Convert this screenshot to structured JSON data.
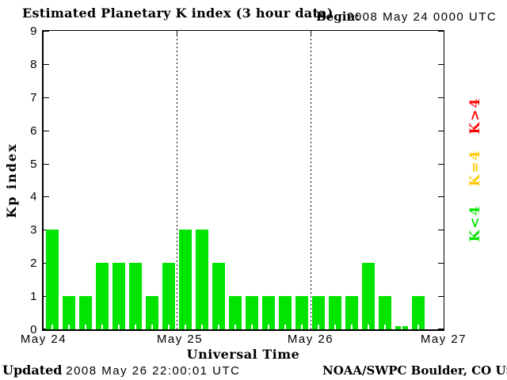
{
  "header": {
    "title": "Estimated Planetary K index (3 hour data)",
    "begin_label": "Begin:",
    "begin_value": "2008 May 24 0000 UTC"
  },
  "footer": {
    "updated_label": "Updated",
    "updated_value": "2008 May 26 22:00:01 UTC",
    "credit": "NOAA/SWPC Boulder, CO USA"
  },
  "chart_data": {
    "type": "bar",
    "title": "Estimated Planetary K index (3 hour data)",
    "xlabel": "Universal Time",
    "ylabel": "Kp index",
    "ylim": [
      0,
      9
    ],
    "yticks": [
      0,
      1,
      2,
      3,
      4,
      5,
      6,
      7,
      8,
      9
    ],
    "bin_hours": 3,
    "slots_per_day": 8,
    "day_labels": [
      "May 24",
      "May 25",
      "May 26",
      "May 27"
    ],
    "day_dividers_after_day": [
      1,
      2
    ],
    "values": [
      3,
      1,
      1,
      2,
      2,
      2,
      1,
      2,
      3,
      3,
      2,
      1,
      1,
      1,
      1,
      1,
      1,
      1,
      1,
      2,
      1,
      0,
      1,
      null
    ],
    "grid": "off",
    "legend_position": "right-rotated",
    "legend": [
      {
        "label": "K>4",
        "color": "#ff0000"
      },
      {
        "label": "K=4",
        "color": "#ffc800"
      },
      {
        "label": "K<4",
        "color": "#00e400"
      }
    ],
    "colors": {
      "bar": "#00e400",
      "axis": "#000000",
      "background": "#ffffff"
    }
  }
}
